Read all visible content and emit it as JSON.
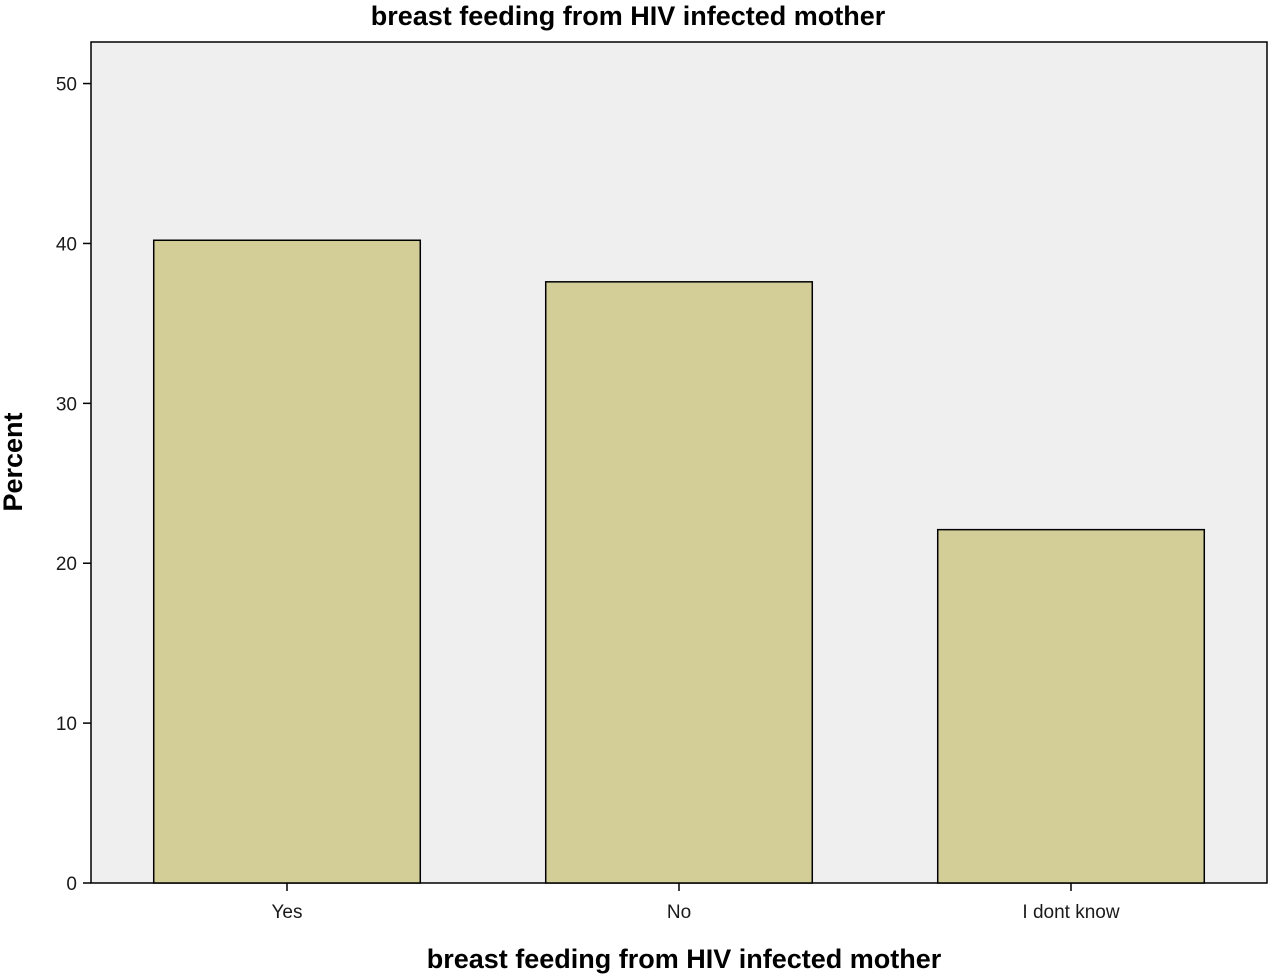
{
  "chart_data": {
    "type": "bar",
    "title": "breast feeding from HIV infected mother",
    "xlabel": "breast feeding from HIV infected mother",
    "ylabel": "Percent",
    "categories": [
      "Yes",
      "No",
      "I dont know"
    ],
    "values": [
      40.2,
      37.6,
      22.1
    ],
    "ylim": [
      0,
      52.6
    ],
    "yticks": [
      0,
      10,
      20,
      30,
      40,
      50
    ],
    "grid": false,
    "legend": "none",
    "colors": {
      "bar_fill": "#d3ce98",
      "bar_stroke": "#000000",
      "plot_background": "#efefef"
    }
  }
}
